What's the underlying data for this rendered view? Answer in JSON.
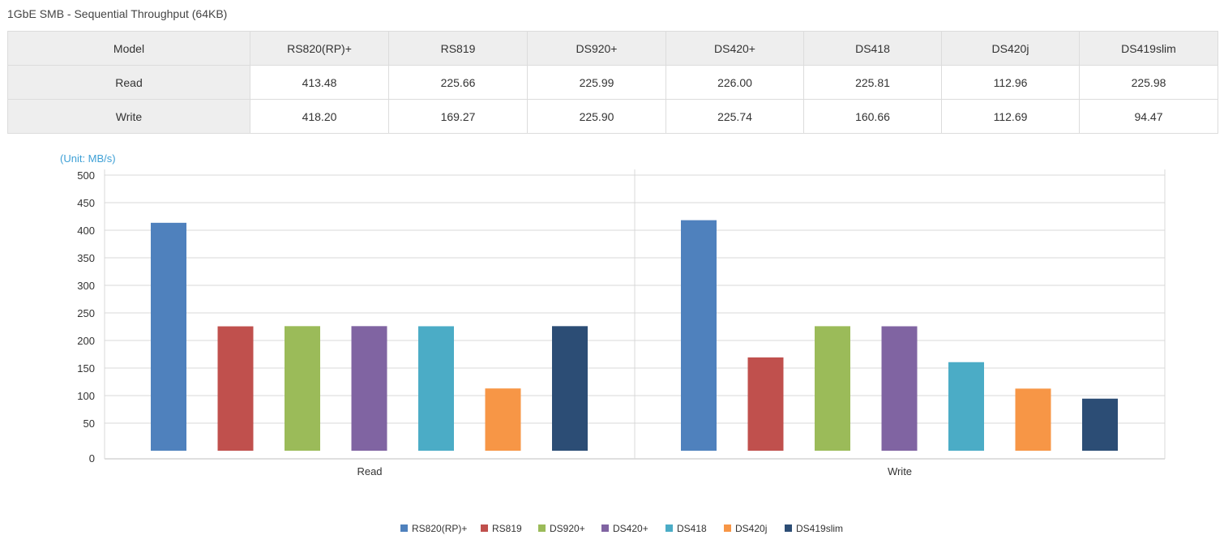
{
  "page": {
    "title": "1GbE SMB - Sequential Throughput (64KB)"
  },
  "table": {
    "header": [
      "Model",
      "RS820(RP)+",
      "RS819",
      "DS920+",
      "DS420+",
      "DS418",
      "DS420j",
      "DS419slim"
    ],
    "rows": [
      {
        "label": "Read",
        "values": [
          "413.48",
          "225.66",
          "225.99",
          "226.00",
          "225.81",
          "112.96",
          "225.98"
        ]
      },
      {
        "label": "Write",
        "values": [
          "418.20",
          "169.27",
          "225.90",
          "225.74",
          "160.66",
          "112.69",
          "94.47"
        ]
      }
    ]
  },
  "chart_data": {
    "type": "bar",
    "unit_label": "(Unit: MB/s)",
    "categories": [
      "Read",
      "Write"
    ],
    "ylim": [
      0,
      500
    ],
    "yticks": [
      0,
      50,
      100,
      150,
      200,
      250,
      300,
      350,
      400,
      450,
      500
    ],
    "grid": true,
    "legend_position": "bottom-center",
    "series": [
      {
        "name": "RS820(RP)+",
        "color": "#4f81bd",
        "values": [
          413.48,
          418.2
        ]
      },
      {
        "name": "RS819",
        "color": "#c0504d",
        "values": [
          225.66,
          169.27
        ]
      },
      {
        "name": "DS920+",
        "color": "#9bbb59",
        "values": [
          225.99,
          225.9
        ]
      },
      {
        "name": "DS420+",
        "color": "#8064a2",
        "values": [
          226.0,
          225.74
        ]
      },
      {
        "name": "DS418",
        "color": "#4bacc6",
        "values": [
          225.81,
          160.66
        ]
      },
      {
        "name": "DS420j",
        "color": "#f79646",
        "values": [
          112.96,
          112.69
        ]
      },
      {
        "name": "DS419slim",
        "color": "#2c4d75",
        "values": [
          225.98,
          94.47
        ]
      }
    ]
  }
}
